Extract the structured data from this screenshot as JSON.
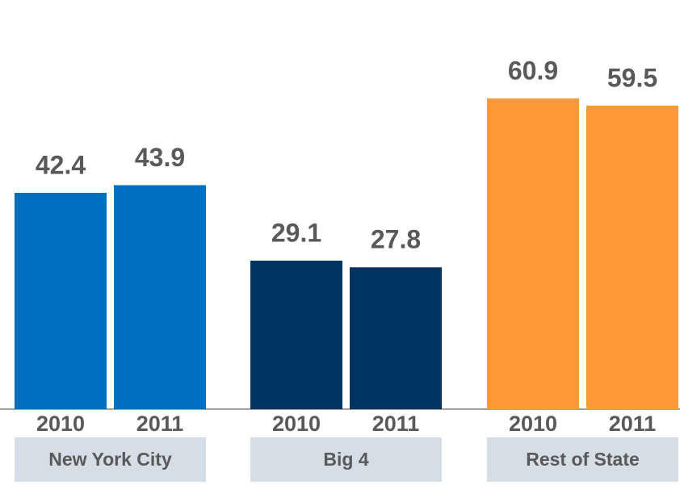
{
  "chart_data": {
    "type": "bar",
    "categories": [
      "New York City",
      "Big 4",
      "Rest of State"
    ],
    "groups": [
      {
        "color": "#0070c0",
        "labels": [
          "2010",
          "2011"
        ],
        "values": [
          42.4,
          43.9
        ]
      },
      {
        "color": "#003463",
        "labels": [
          "2010",
          "2011"
        ],
        "values": [
          29.1,
          27.8
        ]
      },
      {
        "color": "#fd9a35",
        "labels": [
          "2010",
          "2011"
        ],
        "values": [
          60.9,
          59.5
        ]
      }
    ]
  }
}
